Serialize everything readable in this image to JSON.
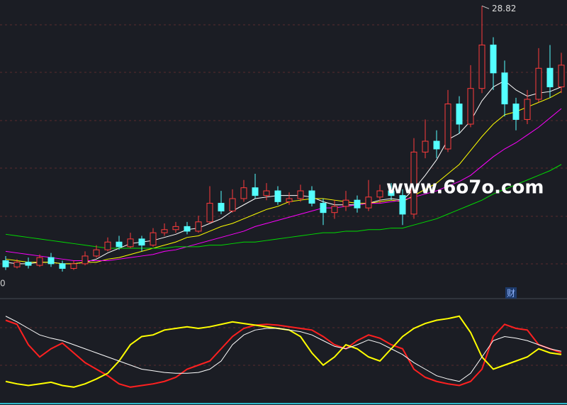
{
  "chart_data": [
    {
      "type": "candlestick",
      "watermark": "www.6o7o.com",
      "axis_fragment": "0",
      "marker": "财",
      "up_color": "#ff3b3b",
      "down_color": "#54ffff",
      "ylim": [
        10,
        29.2
      ],
      "open": [
        12.4,
        12.0,
        12.3,
        12.1,
        12.6,
        12.2,
        11.9,
        12.2,
        12.7,
        13.1,
        13.6,
        13.3,
        13.8,
        13.4,
        14.2,
        14.4,
        14.6,
        14.3,
        14.9,
        16.1,
        15.6,
        16.4,
        17.1,
        16.6,
        16.9,
        16.2,
        16.4,
        16.9,
        16.1,
        15.5,
        15.9,
        16.3,
        15.8,
        16.5,
        16.9,
        16.6,
        15.4,
        19.4,
        20.1,
        19.6,
        22.5,
        21.2,
        23.5,
        26.3,
        24.5,
        22.5,
        21.5,
        22.8,
        24.8,
        23.6
      ],
      "close": [
        12.0,
        12.3,
        12.1,
        12.6,
        12.2,
        11.9,
        12.2,
        12.7,
        13.1,
        13.6,
        13.3,
        13.8,
        13.4,
        14.2,
        14.4,
        14.6,
        14.3,
        14.9,
        16.1,
        15.6,
        16.4,
        17.1,
        16.6,
        16.9,
        16.2,
        16.4,
        16.9,
        16.1,
        15.5,
        15.9,
        16.3,
        15.8,
        16.5,
        16.9,
        16.6,
        15.4,
        19.4,
        20.1,
        19.6,
        22.5,
        21.2,
        23.5,
        26.3,
        24.5,
        22.5,
        21.5,
        22.8,
        24.8,
        23.6,
        25.0
      ],
      "high": [
        12.7,
        12.5,
        12.6,
        12.8,
        12.9,
        12.4,
        12.4,
        13.0,
        13.4,
        13.9,
        14.0,
        14.2,
        14.0,
        14.5,
        14.8,
        14.9,
        14.9,
        15.3,
        17.2,
        16.9,
        17.0,
        17.6,
        18.0,
        17.4,
        17.2,
        16.8,
        17.3,
        17.2,
        16.4,
        16.3,
        16.9,
        16.6,
        17.6,
        17.3,
        17.4,
        17.0,
        20.3,
        21.5,
        20.8,
        23.4,
        23.0,
        25.0,
        28.82,
        26.8,
        25.3,
        22.9,
        23.4,
        26.1,
        26.3,
        25.8
      ],
      "low": [
        11.8,
        11.9,
        11.9,
        12.0,
        12.0,
        11.7,
        11.8,
        12.1,
        12.6,
        13.0,
        13.1,
        13.2,
        13.0,
        13.3,
        14.0,
        14.2,
        14.1,
        14.2,
        14.8,
        15.4,
        15.5,
        16.2,
        16.4,
        16.3,
        16.0,
        16.0,
        16.2,
        15.9,
        14.7,
        15.1,
        15.6,
        15.5,
        15.6,
        16.1,
        16.3,
        14.7,
        15.1,
        19.0,
        19.0,
        19.4,
        20.6,
        21.0,
        23.2,
        23.4,
        21.7,
        20.8,
        21.2,
        22.6,
        22.9,
        23.2
      ],
      "lines": [
        {
          "color": "#ffffff",
          "values": [
            12.3,
            12.2,
            12.2,
            12.3,
            12.3,
            12.2,
            12.2,
            12.3,
            12.5,
            12.9,
            13.2,
            13.5,
            13.6,
            13.7,
            13.9,
            14.1,
            14.4,
            14.5,
            14.8,
            15.1,
            15.6,
            16.0,
            16.4,
            16.5,
            16.6,
            16.6,
            16.6,
            16.5,
            16.2,
            16.0,
            16.0,
            16.0,
            16.1,
            16.3,
            16.4,
            16.3,
            17.0,
            17.9,
            18.9,
            20.2,
            20.6,
            21.4,
            22.7,
            23.6,
            24.0,
            23.4,
            23.0,
            23.2,
            23.3,
            23.6
          ]
        },
        {
          "color": "#ffff00",
          "values": [
            12.5,
            12.4,
            12.3,
            12.3,
            12.3,
            12.2,
            12.2,
            12.3,
            12.3,
            12.5,
            12.6,
            12.8,
            13.0,
            13.2,
            13.4,
            13.6,
            13.9,
            14.0,
            14.3,
            14.6,
            14.8,
            15.1,
            15.4,
            15.7,
            15.9,
            16.2,
            16.3,
            16.4,
            16.4,
            16.3,
            16.2,
            16.1,
            16.1,
            16.2,
            16.3,
            16.2,
            16.6,
            17.0,
            17.4,
            18.0,
            18.6,
            19.5,
            20.4,
            21.2,
            21.8,
            22.0,
            22.3,
            22.6,
            22.9,
            23.3
          ]
        },
        {
          "color": "#ff00ff",
          "values": [
            13.0,
            12.9,
            12.8,
            12.7,
            12.6,
            12.5,
            12.4,
            12.4,
            12.4,
            12.4,
            12.5,
            12.6,
            12.7,
            12.8,
            13.0,
            13.1,
            13.3,
            13.5,
            13.7,
            13.9,
            14.1,
            14.3,
            14.6,
            14.8,
            15.0,
            15.2,
            15.4,
            15.6,
            15.8,
            15.8,
            15.9,
            16.0,
            16.1,
            16.1,
            16.2,
            16.3,
            16.5,
            16.7,
            16.9,
            17.2,
            17.5,
            17.9,
            18.5,
            19.1,
            19.6,
            20.0,
            20.5,
            21.0,
            21.6,
            22.2
          ]
        },
        {
          "color": "#00dd00",
          "values": [
            14.1,
            14.0,
            13.9,
            13.8,
            13.7,
            13.6,
            13.5,
            13.4,
            13.3,
            13.2,
            13.2,
            13.2,
            13.2,
            13.2,
            13.2,
            13.3,
            13.3,
            13.3,
            13.4,
            13.4,
            13.5,
            13.6,
            13.6,
            13.7,
            13.8,
            13.9,
            14.0,
            14.1,
            14.2,
            14.2,
            14.3,
            14.3,
            14.4,
            14.4,
            14.5,
            14.5,
            14.7,
            14.9,
            15.1,
            15.4,
            15.7,
            16.0,
            16.3,
            16.7,
            17.0,
            17.3,
            17.6,
            17.9,
            18.2,
            18.6
          ]
        }
      ]
    },
    {
      "type": "line",
      "ylim": [
        0,
        100
      ],
      "series": [
        {
          "color": "#ff2020",
          "values": [
            90,
            85,
            60,
            45,
            55,
            62,
            50,
            38,
            30,
            22,
            12,
            8,
            10,
            12,
            15,
            20,
            30,
            35,
            40,
            55,
            70,
            80,
            84,
            85,
            84,
            82,
            80,
            78,
            70,
            60,
            55,
            65,
            72,
            68,
            60,
            55,
            30,
            20,
            15,
            12,
            10,
            15,
            30,
            70,
            85,
            80,
            78,
            60,
            55,
            50
          ]
        },
        {
          "color": "#ffff00",
          "values": [
            15,
            12,
            10,
            12,
            14,
            10,
            8,
            12,
            18,
            25,
            40,
            60,
            70,
            72,
            78,
            80,
            82,
            80,
            82,
            85,
            88,
            86,
            84,
            82,
            80,
            78,
            70,
            50,
            35,
            45,
            60,
            55,
            45,
            40,
            55,
            70,
            80,
            86,
            90,
            92,
            95,
            75,
            45,
            30,
            35,
            40,
            45,
            55,
            50,
            48
          ]
        },
        {
          "color": "#ffffff",
          "values": [
            95,
            88,
            80,
            72,
            68,
            65,
            60,
            55,
            50,
            45,
            40,
            35,
            30,
            28,
            26,
            25,
            25,
            26,
            30,
            40,
            60,
            72,
            78,
            80,
            80,
            78,
            76,
            72,
            65,
            58,
            55,
            60,
            66,
            62,
            55,
            48,
            38,
            30,
            22,
            18,
            15,
            25,
            45,
            65,
            70,
            68,
            65,
            60,
            55,
            52
          ]
        }
      ]
    }
  ]
}
